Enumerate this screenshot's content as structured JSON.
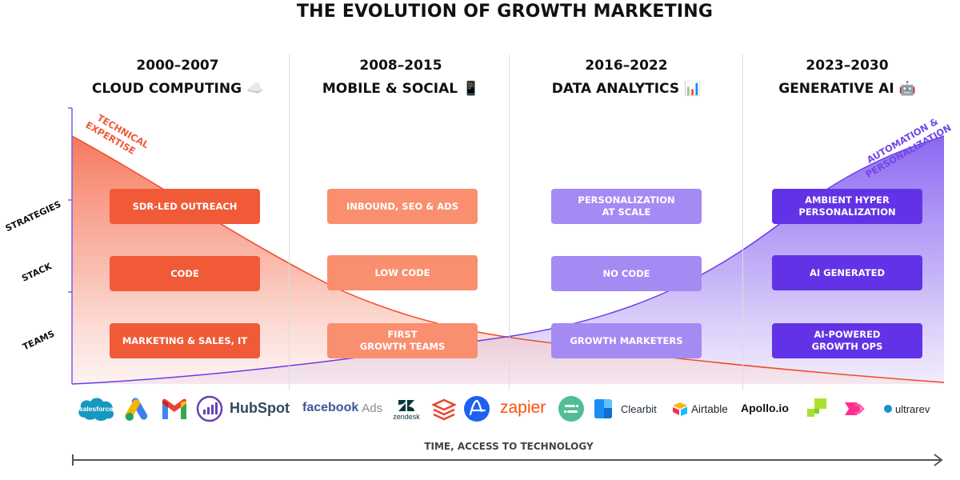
{
  "title": "THE EVOLUTION OF GROWTH MARKETING",
  "colors": {
    "tech": "#f15a37",
    "tech_light": "#fa9a7e",
    "purple_light": "#a287f4",
    "purple_dark": "#6233e6",
    "axis": "#555555"
  },
  "eras": [
    {
      "years": "2000–2007",
      "name": "CLOUD COMPUTING ☁️"
    },
    {
      "years": "2008–2015",
      "name": "MOBILE & SOCIAL 📱"
    },
    {
      "years": "2016–2022",
      "name": "DATA ANALYTICS 📊"
    },
    {
      "years": "2023–2030",
      "name": "GENERATIVE AI 🤖"
    }
  ],
  "row_labels": {
    "strategies": "STRATEGIES",
    "stack": "STACK",
    "teams": "TEAMS"
  },
  "curve_labels": {
    "technical": [
      "TECHNICAL",
      "EXPERTISE"
    ],
    "automation": [
      "AUTOMATION &",
      "PERSONALIZATION"
    ]
  },
  "cells": {
    "strategies": [
      "SDR-LED OUTREACH",
      "INBOUND, SEO & ADS",
      "PERSONALIZATION\nAT SCALE",
      "AMBIENT HYPER\nPERSONALIZATION"
    ],
    "stack": [
      "CODE",
      "LOW CODE",
      "NO CODE",
      "AI GENERATED"
    ],
    "teams": [
      "MARKETING & SALES, IT",
      "FIRST\nGROWTH TEAMS",
      "GROWTH MARKETERS",
      "AI-POWERED\nGROWTH OPS"
    ]
  },
  "logos": {
    "salesforce": "salesforce",
    "hubspot": "HubSpot",
    "facebook": "facebook",
    "facebook_ads": "Ads",
    "zendesk": "zendesk",
    "zapier": "zapier",
    "clearbit": "Clearbit",
    "airtable": "Airtable",
    "apollo": "Apollo.io",
    "ultrarev": "ultrarev"
  },
  "x_axis_label": "TIME, ACCESS TO TECHNOLOGY"
}
